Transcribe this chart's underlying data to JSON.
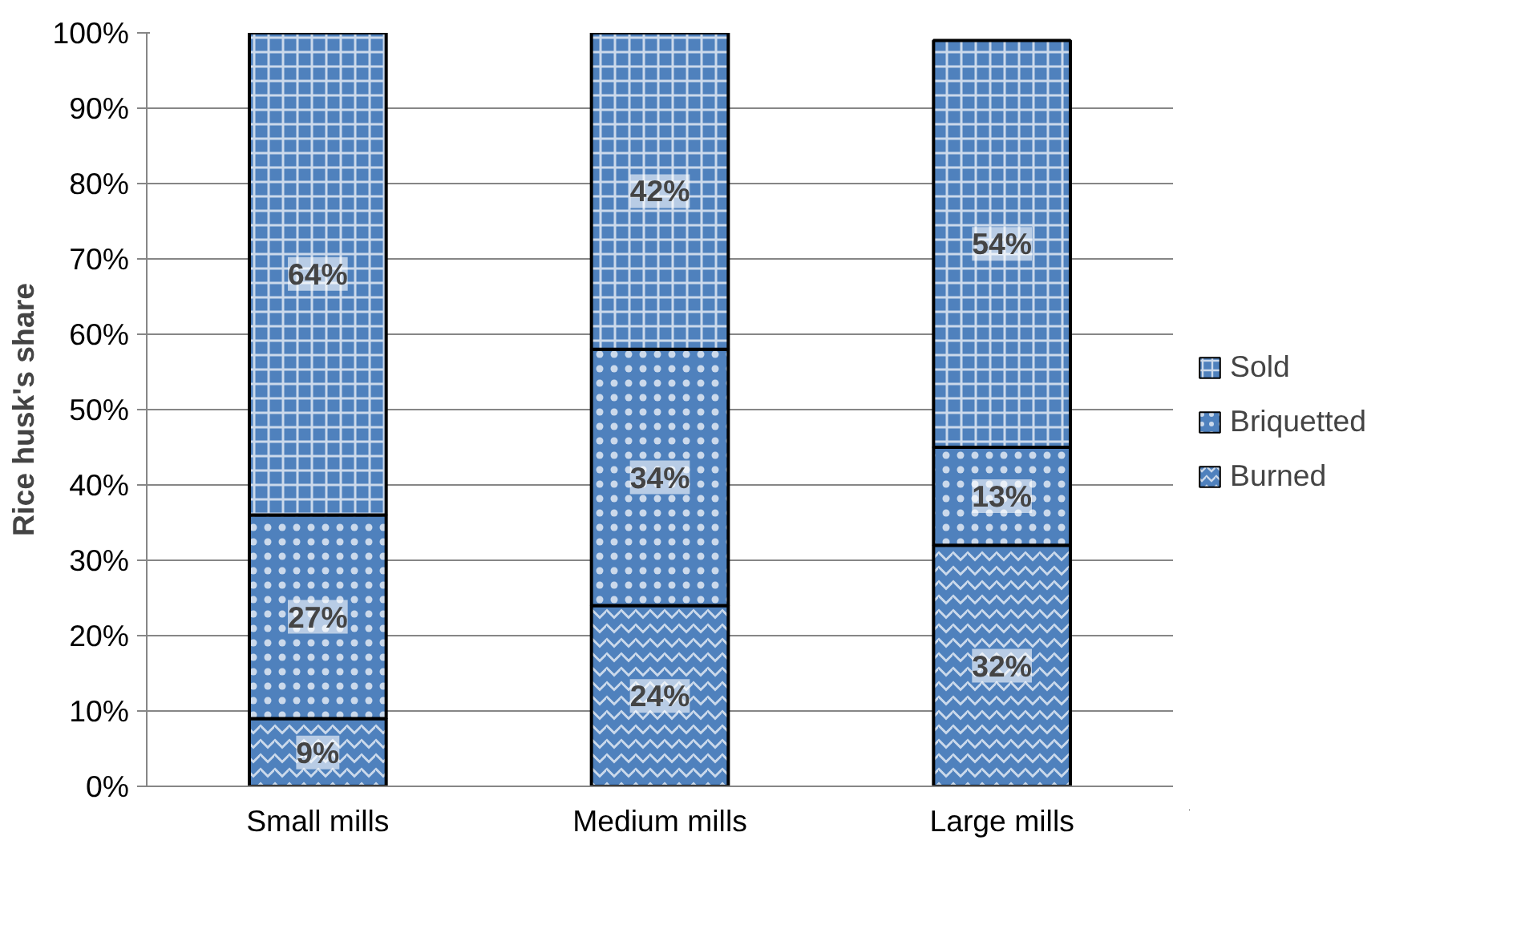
{
  "chart_data": {
    "type": "bar",
    "stacked": true,
    "ylabel": "Rice husk's share",
    "categories": [
      "Small mills",
      "Medium mills",
      "Large mills"
    ],
    "series": [
      {
        "name": "Burned",
        "color": "#4f81bd",
        "values": [
          9,
          24,
          32
        ],
        "value_labels": [
          "9%",
          "24%",
          "32%"
        ]
      },
      {
        "name": "Briquetted",
        "color": "#4f81bd",
        "values": [
          27,
          34,
          13
        ],
        "value_labels": [
          "27%",
          "34%",
          "13%"
        ]
      },
      {
        "name": "Sold",
        "color": "#4f81bd",
        "values": [
          64,
          42,
          54
        ],
        "value_labels": [
          "64%",
          "42%",
          "54%"
        ]
      }
    ],
    "ylim": [
      0,
      100
    ],
    "yticks": [
      {
        "value": 0,
        "label": "0%"
      },
      {
        "value": 10,
        "label": "10%"
      },
      {
        "value": 20,
        "label": "20%"
      },
      {
        "value": 30,
        "label": "30%"
      },
      {
        "value": 40,
        "label": "40%"
      },
      {
        "value": 50,
        "label": "50%"
      },
      {
        "value": 60,
        "label": "60%"
      },
      {
        "value": 70,
        "label": "70%"
      },
      {
        "value": 80,
        "label": "80%"
      },
      {
        "value": 90,
        "label": "90%"
      },
      {
        "value": 100,
        "label": "100%"
      }
    ],
    "grid": "y",
    "legend": "right"
  }
}
